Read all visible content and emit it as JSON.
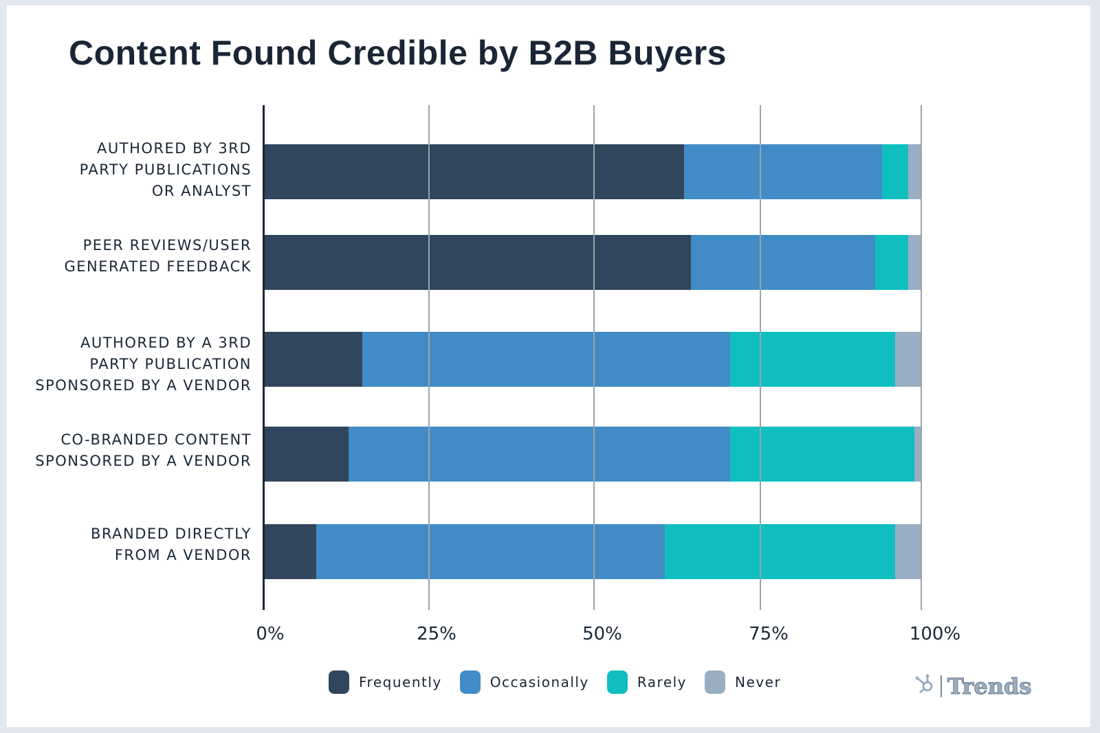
{
  "title": "Content Found Credible by B2B Buyers",
  "chart_data": {
    "type": "bar",
    "orientation": "horizontal",
    "stacked": true,
    "title": "Content Found Credible by B2B Buyers",
    "xlabel": "",
    "ylabel": "",
    "xlim": [
      0,
      100
    ],
    "x_ticks": [
      "0%",
      "25%",
      "50%",
      "75%",
      "100%"
    ],
    "grid": true,
    "legend_position": "bottom",
    "categories": [
      "Authored by 3rd party publications or analyst",
      "Peer reviews/user generated feedback",
      "Authored by a 3rd party publication sponsored by a vendor",
      "Co-branded content sponsored by a vendor",
      "Branded directly from a vendor"
    ],
    "series": [
      {
        "name": "Frequently",
        "color": "#30465c",
        "values": [
          64,
          65,
          15,
          13,
          8
        ]
      },
      {
        "name": "Occasionally",
        "color": "#418cc6",
        "values": [
          30,
          28,
          56,
          58,
          53
        ]
      },
      {
        "name": "Rarely",
        "color": "#0fbfbf",
        "values": [
          4,
          5,
          25,
          28,
          35
        ]
      },
      {
        "name": "Never",
        "color": "#9aaec3",
        "values": [
          2,
          2,
          4,
          1,
          4
        ]
      }
    ]
  },
  "labels": {
    "row0": [
      "Authored by 3rd",
      "party publications",
      "or analyst"
    ],
    "row1": [
      "Peer reviews/user",
      "generated feedback"
    ],
    "row2": [
      "Authored by a 3rd",
      "party publication",
      "sponsored by a vendor"
    ],
    "row3": [
      "Co-branded content",
      "sponsored by a vendor"
    ],
    "row4": [
      "Branded directly",
      "from a vendor"
    ]
  },
  "ticks": [
    "0%",
    "25%",
    "50%",
    "75%",
    "100%"
  ],
  "legend": [
    {
      "label": "Frequently",
      "color": "#30465c"
    },
    {
      "label": "Occasionally",
      "color": "#418cc6"
    },
    {
      "label": "Rarely",
      "color": "#0fbfbf"
    },
    {
      "label": "Never",
      "color": "#9aaec3"
    }
  ],
  "brand": {
    "icon": "hubspot-sprocket-icon",
    "text": "Trends"
  }
}
